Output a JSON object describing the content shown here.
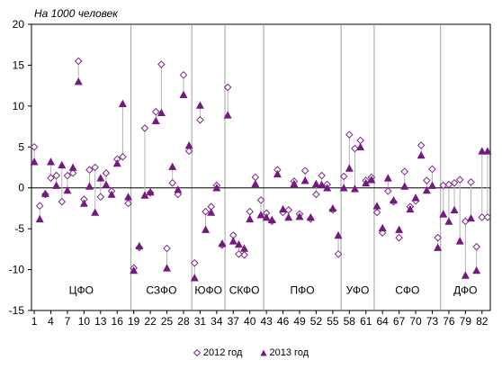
{
  "chart_data": {
    "type": "scatter",
    "unit_label": "На 1000 человек",
    "ylim": [
      -15,
      20
    ],
    "yticks": [
      20,
      15,
      10,
      5,
      0,
      -5,
      -10,
      -15
    ],
    "xlim": [
      0.5,
      83.5
    ],
    "xticks": [
      1,
      4,
      7,
      10,
      13,
      16,
      19,
      22,
      25,
      28,
      31,
      34,
      37,
      40,
      43,
      46,
      49,
      52,
      55,
      58,
      61,
      64,
      67,
      70,
      73,
      76,
      79,
      82
    ],
    "grid": false,
    "legend_position": "bottom",
    "districts": [
      {
        "label": "ЦФО",
        "x_from": 1,
        "x_to": 18
      },
      {
        "label": "СЗФО",
        "x_from": 19,
        "x_to": 29
      },
      {
        "label": "ЮФО",
        "x_from": 30,
        "x_to": 35
      },
      {
        "label": "СКФО",
        "x_from": 36,
        "x_to": 42
      },
      {
        "label": "ПФО",
        "x_from": 43,
        "x_to": 56
      },
      {
        "label": "УФО",
        "x_from": 57,
        "x_to": 62
      },
      {
        "label": "СФО",
        "x_from": 63,
        "x_to": 74
      },
      {
        "label": "ДФО",
        "x_from": 75,
        "x_to": 83
      }
    ],
    "district_boundaries": [
      18.5,
      29.5,
      35.5,
      42.5,
      56.5,
      62.5,
      74.5
    ],
    "series": [
      {
        "name": "2012 год",
        "marker": "diamond-open",
        "color": "#7b2a86",
        "values": [
          5.0,
          -2.2,
          -0.8,
          1.2,
          1.5,
          -1.7,
          1.5,
          1.8,
          15.5,
          -1.4,
          2.2,
          2.5,
          -1.1,
          1.8,
          -0.4,
          3.5,
          3.8,
          -1.9,
          -9.8,
          -7.3,
          7.3,
          -0.6,
          9.3,
          15.1,
          -7.4,
          0.6,
          -0.8,
          13.8,
          4.5,
          -9.2,
          8.3,
          -2.9,
          -2.3,
          0.3,
          -7.0,
          12.3,
          -5.8,
          -8.1,
          -8.2,
          -2.9,
          1.3,
          -1.5,
          -3.1,
          -4.1,
          2.2,
          -3.0,
          -2.7,
          0.8,
          -3.2,
          2.1,
          -3.8,
          -0.8,
          1.5,
          0.4,
          -2.7,
          -8.1,
          1.4,
          6.5,
          4.8,
          5.8,
          0.9,
          1.3,
          -3.0,
          -5.5,
          -0.4,
          -1.7,
          -6.1,
          2.0,
          -2.3,
          -1.6,
          5.2,
          0.9,
          2.3,
          -6.1,
          0.3,
          0.4,
          0.6,
          1.0,
          -4.1,
          0.7,
          -7.2,
          -3.6,
          -3.6
        ]
      },
      {
        "name": "2013 год",
        "marker": "triangle-filled",
        "color": "#74197f",
        "values": [
          3.2,
          -3.8,
          -0.7,
          3.2,
          0.3,
          2.8,
          -0.3,
          2.5,
          13.0,
          -1.9,
          0.2,
          -3.0,
          1.2,
          0.4,
          -0.8,
          3.0,
          10.3,
          -1.1,
          -10.1,
          -7.1,
          -0.9,
          -0.5,
          8.2,
          9.2,
          -9.8,
          2.6,
          -0.2,
          11.4,
          5.2,
          -11.0,
          10.1,
          -5.1,
          -3.0,
          0.0,
          -6.8,
          8.9,
          -6.5,
          -6.9,
          -7.4,
          -3.8,
          0.5,
          -3.3,
          -3.6,
          -3.9,
          1.7,
          -2.6,
          -3.6,
          0.5,
          -3.5,
          0.9,
          -3.6,
          0.5,
          0.4,
          0.0,
          -2.5,
          -5.8,
          0.0,
          2.4,
          -0.1,
          5.0,
          0.6,
          1.0,
          -2.2,
          -4.9,
          1.2,
          -1.5,
          -5.1,
          0.2,
          -2.6,
          -1.2,
          4.0,
          -0.3,
          0.3,
          -7.3,
          -3.2,
          -4.1,
          -2.7,
          -6.5,
          -10.7,
          -3.7,
          -10.1,
          4.5,
          4.5
        ]
      }
    ]
  }
}
